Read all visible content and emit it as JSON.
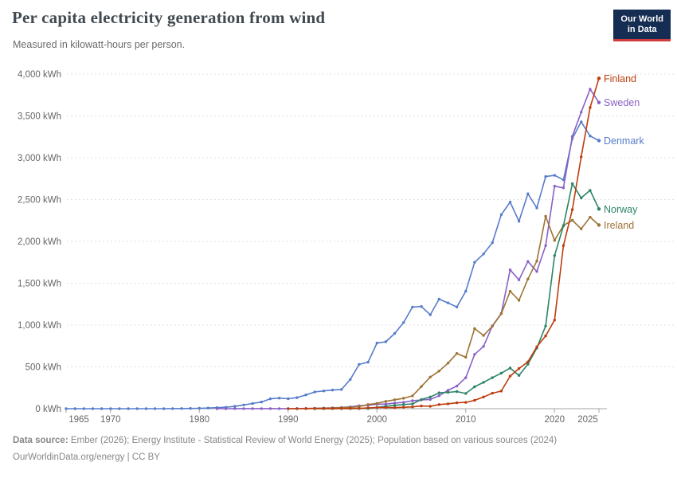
{
  "header": {
    "title": "Per capita electricity generation from wind",
    "subtitle": "Measured in kilowatt-hours per person.",
    "logo": {
      "line1": "Our World",
      "line2": "in Data"
    }
  },
  "chart_data": {
    "type": "line",
    "title": "Per capita electricity generation from wind",
    "unit": "kilowatt-hours per person",
    "ylim": [
      0,
      4000
    ],
    "x_range": [
      1965,
      2025
    ],
    "grid": "dashed-horizontal",
    "legend_position": "end-of-line",
    "y_ticks": [
      {
        "value": 0,
        "label": "0 kWh"
      },
      {
        "value": 500,
        "label": "500 kWh"
      },
      {
        "value": 1000,
        "label": "1,000 kWh"
      },
      {
        "value": 1500,
        "label": "1,500 kWh"
      },
      {
        "value": 2000,
        "label": "2,000 kWh"
      },
      {
        "value": 2500,
        "label": "2,500 kWh"
      },
      {
        "value": 3000,
        "label": "3,000 kWh"
      },
      {
        "value": 3500,
        "label": "3,500 kWh"
      },
      {
        "value": 4000,
        "label": "4,000 kWh"
      }
    ],
    "x_ticks": [
      1965,
      1970,
      1980,
      1990,
      2000,
      2010,
      2020,
      2025
    ],
    "series": [
      {
        "name": "Denmark",
        "color": "#577ccb",
        "start_year": 1965,
        "values": [
          0,
          0,
          0,
          0,
          0,
          0,
          0,
          0,
          0,
          0,
          0,
          0,
          1,
          2,
          3,
          5,
          8,
          12,
          17,
          28,
          45,
          62,
          80,
          118,
          127,
          119,
          132,
          165,
          200,
          212,
          223,
          230,
          350,
          530,
          556,
          785,
          800,
          900,
          1030,
          1215,
          1222,
          1123,
          1310,
          1265,
          1215,
          1405,
          1750,
          1850,
          1985,
          2320,
          2470,
          2240,
          2570,
          2400,
          2775,
          2790,
          2735,
          3230,
          3430,
          3260,
          3205
        ]
      },
      {
        "name": "Sweden",
        "color": "#8960c5",
        "start_year": 1982,
        "values": [
          0,
          0,
          1,
          1,
          1,
          1,
          1,
          1,
          1,
          2,
          3,
          5,
          8,
          10,
          15,
          22,
          35,
          41,
          52,
          55,
          68,
          75,
          95,
          105,
          110,
          155,
          220,
          270,
          370,
          650,
          745,
          990,
          1140,
          1660,
          1540,
          1760,
          1640,
          1950,
          2660,
          2640,
          3255,
          3545,
          3820,
          3660
        ]
      },
      {
        "name": "Ireland",
        "color": "#9d7336",
        "start_year": 1992,
        "values": [
          1,
          4,
          6,
          8,
          12,
          16,
          25,
          50,
          64,
          88,
          107,
          125,
          153,
          265,
          378,
          450,
          545,
          660,
          615,
          958,
          875,
          987,
          1135,
          1404,
          1295,
          1550,
          1765,
          2300,
          2012,
          2190,
          2252,
          2150,
          2290,
          2195
        ]
      },
      {
        "name": "Norway",
        "color": "#2c8465",
        "start_year": 1993,
        "values": [
          0,
          0,
          1,
          1,
          1,
          2,
          3,
          15,
          30,
          40,
          50,
          57,
          110,
          140,
          190,
          195,
          205,
          182,
          262,
          315,
          370,
          425,
          486,
          398,
          532,
          725,
          990,
          1830,
          2185,
          2690,
          2520,
          2610,
          2388
        ]
      },
      {
        "name": "Finland",
        "color": "#bc3d0d",
        "start_year": 1990,
        "values": [
          0,
          0,
          1,
          2,
          2,
          2,
          3,
          3,
          4,
          9,
          14,
          13,
          12,
          17,
          22,
          32,
          29,
          50,
          58,
          70,
          75,
          100,
          140,
          185,
          210,
          390,
          480,
          560,
          740,
          870,
          1060,
          1950,
          2380,
          3010,
          3600,
          3950
        ]
      }
    ]
  },
  "footer": {
    "datasource_label": "Data source:",
    "datasource": "Ember (2026); Energy Institute - Statistical Review of World Energy (2025); Population based on various sources (2024)",
    "link": "OurWorldinData.org/energy",
    "separator": " | ",
    "license": "CC BY"
  }
}
